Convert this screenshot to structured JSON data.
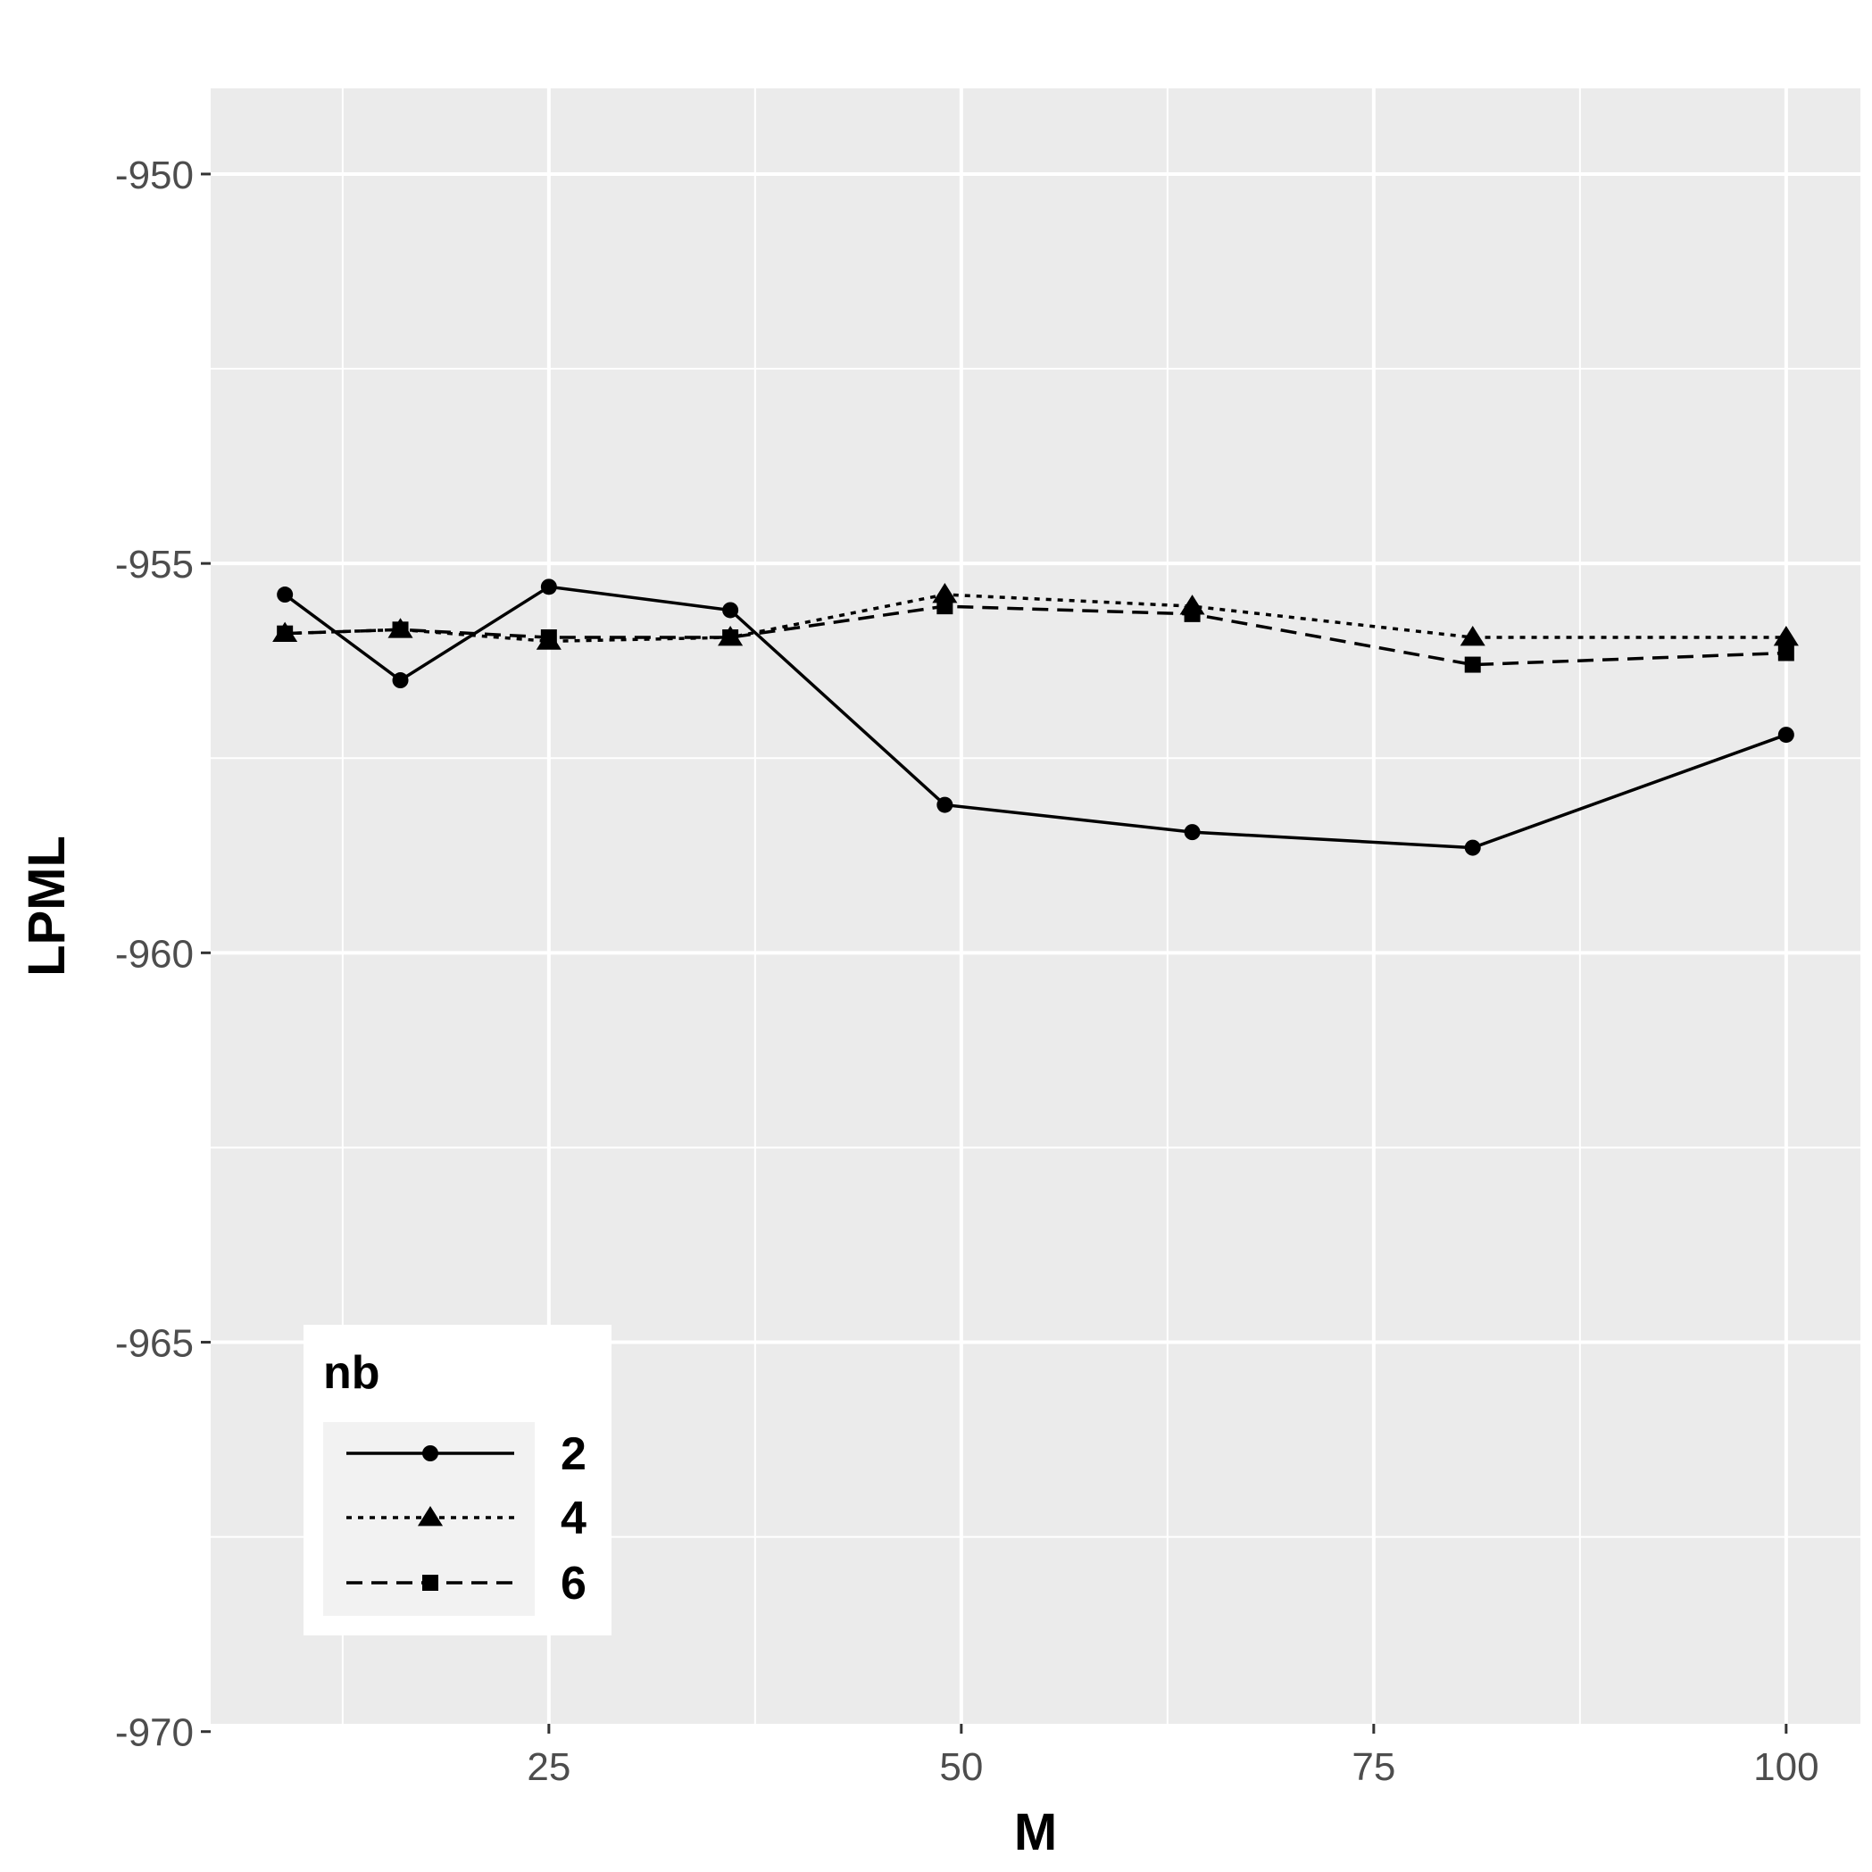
{
  "chart_data": {
    "type": "line",
    "title": "",
    "xlabel": "M",
    "ylabel": "LPML",
    "x": [
      9,
      16,
      25,
      36,
      49,
      64,
      81,
      100
    ],
    "xlim": [
      4.5,
      104.5
    ],
    "ylim": [
      -969.9,
      -948.9
    ],
    "xticks": [
      25,
      50,
      75,
      100
    ],
    "xtick_labels": [
      "25",
      "50",
      "75",
      "100"
    ],
    "yticks": [
      -950,
      -955,
      -960,
      -965,
      -970
    ],
    "ytick_labels": [
      "-950",
      "-955",
      "-960",
      "-965",
      "-970"
    ],
    "grid": true,
    "legend": {
      "title": "nb",
      "position": "bottom-left"
    },
    "series": [
      {
        "name": "2",
        "line": "solid",
        "marker": "circle",
        "values": [
          -955.4,
          -956.5,
          -955.3,
          -955.6,
          -958.1,
          -958.45,
          -958.65,
          -957.2
        ]
      },
      {
        "name": "4",
        "line": "dotted",
        "marker": "triangle",
        "values": [
          -955.9,
          -955.85,
          -956.0,
          -955.95,
          -955.4,
          -955.55,
          -955.95,
          -955.95
        ]
      },
      {
        "name": "6",
        "line": "dashed",
        "marker": "square",
        "values": [
          -955.9,
          -955.85,
          -955.95,
          -955.95,
          -955.55,
          -955.65,
          -956.3,
          -956.15
        ]
      }
    ],
    "colors": {
      "panel": "#ebebeb",
      "grid": "#ffffff",
      "line": "#000000",
      "legend_key_bg": "#f2f2f2"
    }
  }
}
